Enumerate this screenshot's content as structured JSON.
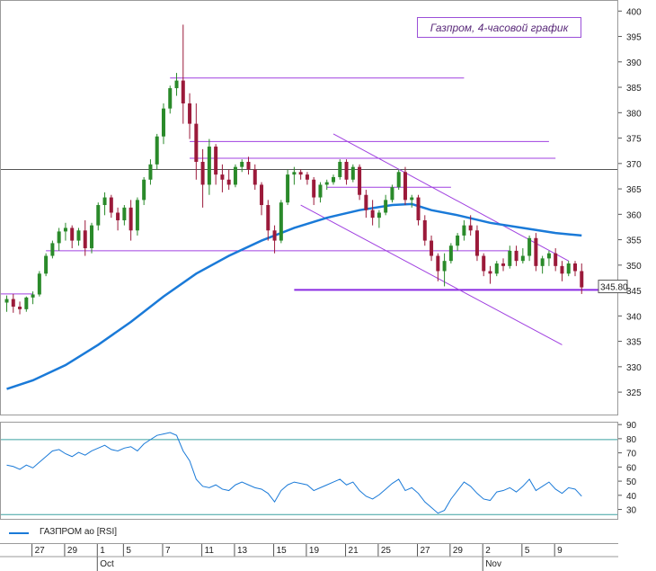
{
  "title": "Газпром, 4-часовой график",
  "last_price_label": "345.80",
  "legend": {
    "series_label": "ГАЗПРОМ ао [RSI]"
  },
  "colors": {
    "candle_up": "#2a8a2a",
    "candle_down": "#9b1a3a",
    "sma": "#1a7ad8",
    "trend": "#a040e0",
    "rsi": "#1a7ad8",
    "rsi_levels": "#3aa0a0",
    "support": "#8a2be2",
    "resistance_ref": "#555555"
  },
  "chart_data": [
    {
      "type": "candlestick",
      "name": "price",
      "y_axis": {
        "ticks": [
          325,
          330,
          335,
          340,
          345,
          350,
          355,
          360,
          365,
          370,
          375,
          380,
          385,
          390,
          395,
          400
        ],
        "ylim": [
          321,
          402
        ]
      },
      "x_axis": {
        "date_labels": [
          "27",
          "29",
          "1",
          "5",
          "7",
          "11",
          "13",
          "15",
          "19",
          "21",
          "25",
          "27",
          "29",
          "2",
          "5",
          "9"
        ],
        "month_labels": [
          "Oct",
          "Nov"
        ]
      },
      "grid": false,
      "candles": [
        [
          1,
          342.8,
          344.2,
          341.0,
          343.5
        ],
        [
          2,
          343.5,
          344.5,
          340.8,
          342.0
        ],
        [
          3,
          342.0,
          343.0,
          340.5,
          341.5
        ],
        [
          4,
          341.5,
          344.0,
          341.0,
          343.8
        ],
        [
          5,
          343.8,
          345.0,
          342.5,
          344.4
        ],
        [
          6,
          344.4,
          349.0,
          344.0,
          348.5
        ],
        [
          7,
          348.5,
          352.5,
          348.0,
          352.0
        ],
        [
          8,
          352.0,
          355.0,
          351.5,
          354.5
        ],
        [
          9,
          354.5,
          357.5,
          353.0,
          356.8
        ],
        [
          10,
          356.8,
          358.5,
          355.0,
          357.5
        ],
        [
          11,
          357.5,
          358.0,
          353.5,
          355.0
        ],
        [
          12,
          355.0,
          357.5,
          354.0,
          357.0
        ],
        [
          13,
          357.0,
          359.0,
          352.0,
          353.5
        ],
        [
          14,
          353.5,
          358.5,
          352.5,
          358.0
        ],
        [
          15,
          358.0,
          362.5,
          357.0,
          362.0
        ],
        [
          16,
          362.0,
          364.5,
          360.0,
          363.5
        ],
        [
          17,
          363.5,
          364.0,
          359.5,
          360.5
        ],
        [
          18,
          360.5,
          361.5,
          357.0,
          359.0
        ],
        [
          19,
          359.0,
          362.0,
          358.0,
          361.5
        ],
        [
          20,
          361.5,
          363.0,
          355.0,
          357.0
        ],
        [
          21,
          357.0,
          363.5,
          356.0,
          363.0
        ],
        [
          22,
          363.0,
          367.5,
          362.0,
          367.0
        ],
        [
          23,
          367.0,
          371.0,
          366.0,
          370.0
        ],
        [
          24,
          370.0,
          376.0,
          369.0,
          375.5
        ],
        [
          25,
          375.5,
          382.0,
          374.0,
          381.0
        ],
        [
          26,
          381.0,
          385.5,
          380.0,
          385.0
        ],
        [
          27,
          385.0,
          388.0,
          383.5,
          386.5
        ],
        [
          28,
          386.5,
          397.5,
          378.0,
          382.0
        ],
        [
          29,
          382.0,
          384.0,
          375.0,
          378.0
        ],
        [
          30,
          378.0,
          382.0,
          367.0,
          370.5
        ],
        [
          31,
          370.5,
          373.0,
          361.5,
          366.0
        ],
        [
          32,
          366.0,
          375.0,
          364.0,
          373.5
        ],
        [
          33,
          373.5,
          374.0,
          366.0,
          368.0
        ],
        [
          34,
          368.0,
          370.0,
          364.5,
          367.0
        ],
        [
          35,
          367.0,
          369.0,
          365.0,
          366.0
        ],
        [
          36,
          366.0,
          370.0,
          365.5,
          369.5
        ],
        [
          37,
          369.5,
          371.0,
          368.5,
          370.5
        ],
        [
          38,
          370.5,
          371.5,
          368.0,
          369.0
        ],
        [
          39,
          369.0,
          370.0,
          365.0,
          366.0
        ],
        [
          40,
          366.0,
          366.5,
          360.0,
          362.0
        ],
        [
          41,
          362.0,
          363.0,
          355.0,
          357.0
        ],
        [
          42,
          357.0,
          358.0,
          352.5,
          355.0
        ],
        [
          43,
          355.0,
          363.0,
          354.5,
          362.5
        ],
        [
          44,
          362.5,
          369.0,
          362.0,
          368.0
        ],
        [
          45,
          368.0,
          369.5,
          366.0,
          368.5
        ],
        [
          46,
          368.5,
          369.0,
          367.0,
          368.0
        ],
        [
          47,
          368.0,
          368.5,
          366.0,
          367.0
        ],
        [
          48,
          367.0,
          367.5,
          362.0,
          363.5
        ],
        [
          49,
          363.5,
          366.5,
          362.5,
          366.0
        ],
        [
          50,
          366.0,
          367.0,
          365.0,
          366.5
        ],
        [
          51,
          366.5,
          368.0,
          366.0,
          367.5
        ],
        [
          52,
          367.5,
          371.0,
          367.0,
          370.5
        ],
        [
          53,
          370.5,
          371.0,
          366.0,
          367.0
        ],
        [
          54,
          367.0,
          370.0,
          366.5,
          369.5
        ],
        [
          55,
          369.5,
          370.0,
          363.0,
          364.0
        ],
        [
          56,
          364.0,
          365.0,
          359.5,
          361.0
        ],
        [
          57,
          361.0,
          363.0,
          358.0,
          359.5
        ],
        [
          58,
          359.5,
          361.0,
          357.5,
          360.5
        ],
        [
          59,
          360.5,
          364.0,
          360.0,
          363.0
        ],
        [
          60,
          363.0,
          366.0,
          362.5,
          365.5
        ],
        [
          61,
          365.5,
          369.0,
          365.0,
          368.5
        ],
        [
          62,
          368.5,
          369.5,
          362.0,
          363.0
        ],
        [
          63,
          363.0,
          364.0,
          361.5,
          363.5
        ],
        [
          64,
          363.5,
          364.0,
          358.0,
          359.0
        ],
        [
          65,
          359.0,
          360.0,
          354.0,
          355.0
        ],
        [
          66,
          355.0,
          356.0,
          351.0,
          352.0
        ],
        [
          67,
          352.0,
          352.5,
          347.0,
          349.0
        ],
        [
          68,
          349.0,
          352.5,
          346.0,
          351.0
        ],
        [
          69,
          351.0,
          354.5,
          350.5,
          354.0
        ],
        [
          70,
          354.0,
          356.5,
          353.0,
          356.0
        ],
        [
          71,
          356.0,
          359.0,
          355.0,
          358.0
        ],
        [
          72,
          358.0,
          360.0,
          356.0,
          357.0
        ],
        [
          73,
          357.0,
          358.0,
          351.0,
          352.0
        ],
        [
          74,
          352.0,
          352.5,
          348.0,
          349.0
        ],
        [
          75,
          349.0,
          350.0,
          346.5,
          348.5
        ],
        [
          76,
          348.5,
          351.0,
          348.0,
          350.5
        ],
        [
          77,
          350.5,
          351.5,
          349.0,
          350.0
        ],
        [
          78,
          350.0,
          354.0,
          349.5,
          353.0
        ],
        [
          79,
          353.0,
          354.0,
          350.0,
          351.0
        ],
        [
          80,
          351.0,
          353.5,
          350.5,
          352.0
        ],
        [
          81,
          352.0,
          356.0,
          351.0,
          355.5
        ],
        [
          82,
          355.5,
          356.5,
          349.0,
          350.0
        ],
        [
          83,
          350.0,
          352.0,
          348.5,
          351.5
        ],
        [
          84,
          351.5,
          353.0,
          350.0,
          352.5
        ],
        [
          85,
          352.5,
          353.5,
          349.0,
          350.0
        ],
        [
          86,
          350.0,
          351.0,
          347.0,
          348.5
        ],
        [
          87,
          348.5,
          351.0,
          348.0,
          350.5
        ],
        [
          88,
          350.5,
          351.0,
          348.0,
          349.0
        ],
        [
          89,
          349.0,
          350.5,
          344.5,
          345.8
        ]
      ],
      "sma": [
        [
          1,
          325.8
        ],
        [
          5,
          327.5
        ],
        [
          10,
          330.5
        ],
        [
          15,
          334.5
        ],
        [
          20,
          339.0
        ],
        [
          25,
          344.0
        ],
        [
          30,
          348.5
        ],
        [
          35,
          352.0
        ],
        [
          40,
          355.0
        ],
        [
          45,
          357.5
        ],
        [
          50,
          359.5
        ],
        [
          55,
          361.0
        ],
        [
          60,
          362.0
        ],
        [
          63,
          362.2
        ],
        [
          66,
          361.0
        ],
        [
          70,
          360.0
        ],
        [
          75,
          358.5
        ],
        [
          80,
          357.5
        ],
        [
          85,
          356.5
        ],
        [
          89,
          356.0
        ]
      ],
      "horizontal_levels": [
        {
          "x0": 26,
          "x1": 71,
          "y": 387.0
        },
        {
          "x0": 29,
          "x1": 84,
          "y": 374.5
        },
        {
          "x0": 29,
          "x1": 85,
          "y": 371.2
        },
        {
          "x0": 1,
          "x1": 94,
          "y": 369.0
        },
        {
          "x0": 50,
          "x1": 69,
          "y": 365.5
        },
        {
          "x0": 7,
          "x1": 78,
          "y": 353.0
        },
        {
          "x0": 45,
          "x1": 94,
          "y": 345.3
        },
        {
          "x0": 1,
          "x1": 5,
          "y": 344.5
        }
      ],
      "trend_lines": [
        {
          "x0": 51,
          "y0": 376.0,
          "x1": 87,
          "y1": 351.0
        },
        {
          "x0": 46,
          "y0": 362.0,
          "x1": 86,
          "y1": 334.5
        }
      ]
    },
    {
      "type": "line",
      "name": "ГАЗПРОМ ао [RSI]",
      "y_axis": {
        "ticks": [
          30,
          40,
          50,
          60,
          70,
          80,
          90
        ],
        "ylim": [
          24,
          92
        ]
      },
      "levels": [
        80,
        27
      ],
      "values": [
        62,
        61,
        59,
        62,
        60,
        64,
        68,
        72,
        73,
        70,
        68,
        71,
        69,
        72,
        74,
        76,
        73,
        72,
        74,
        75,
        72,
        77,
        80,
        83,
        84,
        85,
        83,
        72,
        65,
        52,
        47,
        46,
        48,
        45,
        44,
        48,
        50,
        48,
        46,
        45,
        42,
        36,
        44,
        48,
        50,
        49,
        48,
        44,
        46,
        48,
        50,
        52,
        48,
        50,
        44,
        40,
        38,
        41,
        45,
        49,
        52,
        44,
        46,
        42,
        36,
        32,
        28,
        30,
        38,
        44,
        50,
        47,
        42,
        38,
        37,
        43,
        44,
        46,
        43,
        47,
        52,
        44,
        47,
        50,
        45,
        42,
        46,
        45,
        40
      ]
    }
  ]
}
